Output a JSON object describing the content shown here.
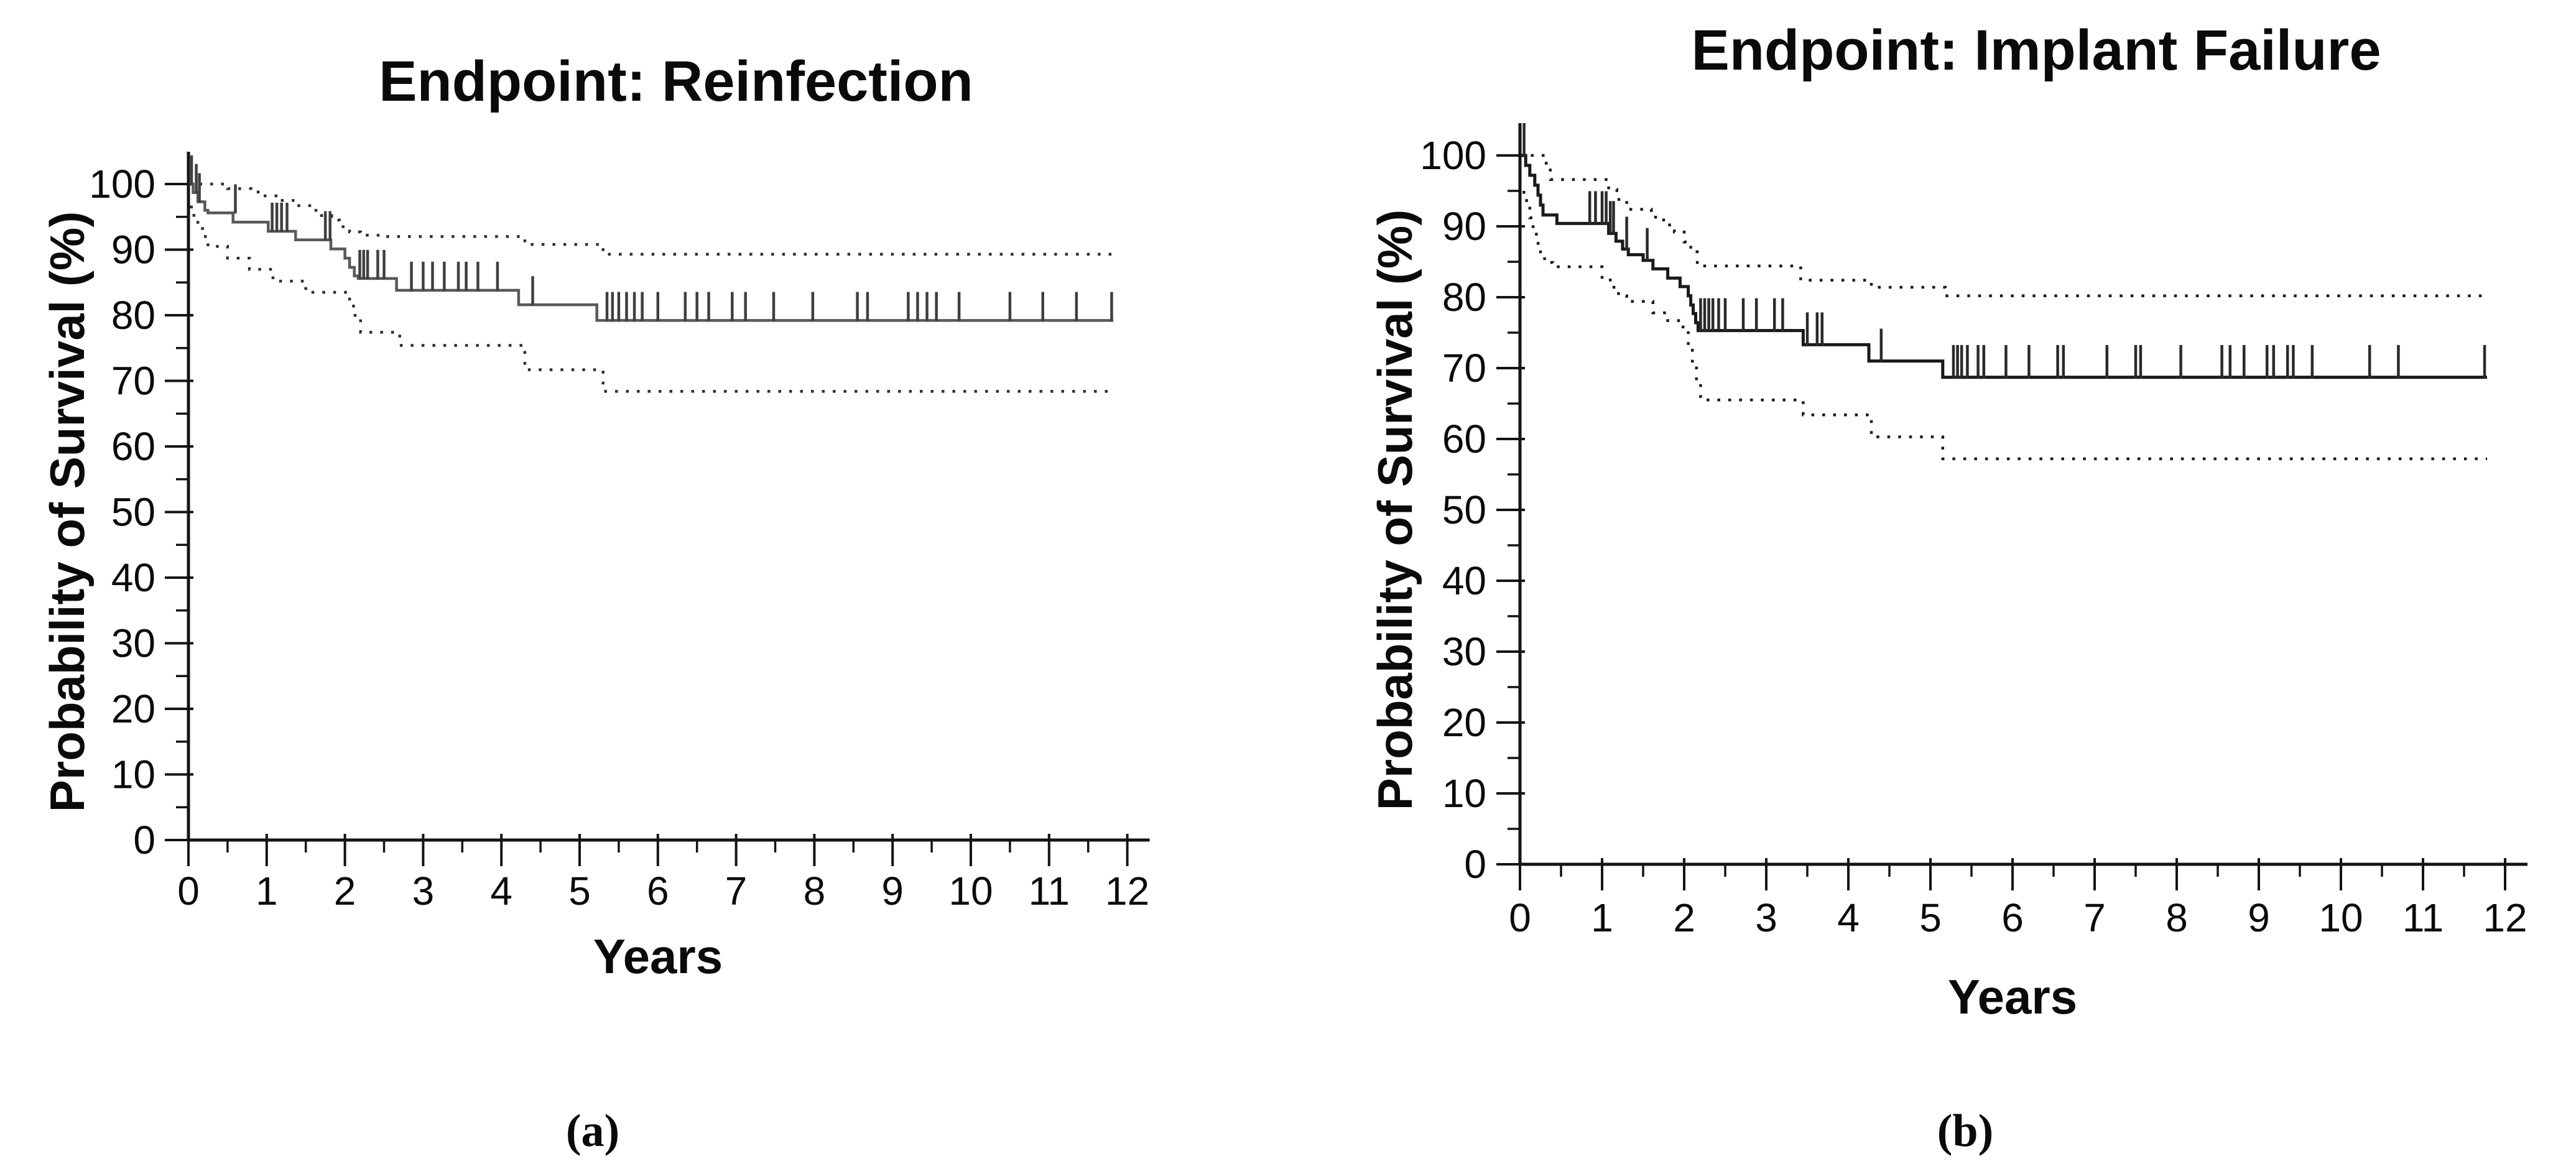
{
  "figure": {
    "background": "#ffffff",
    "text_color": "#0a0a0a",
    "caption_a": "(a)",
    "caption_b": "(b)"
  },
  "chart_data": [
    {
      "type": "line",
      "subtype": "kaplan-meier-survival",
      "title": "Endpoint: Reinfection",
      "xlabel": "Years",
      "ylabel": "Probability of Survival (%)",
      "caption": "(a)",
      "xlim": [
        0,
        12
      ],
      "ylim": [
        0,
        100
      ],
      "x_ticks": [
        0,
        1,
        2,
        3,
        4,
        5,
        6,
        7,
        8,
        9,
        10,
        11,
        12
      ],
      "y_ticks": [
        0,
        10,
        20,
        30,
        40,
        50,
        60,
        70,
        80,
        90,
        100
      ],
      "x_minor_step": 0.5,
      "y_minor_step": 5,
      "grid": false,
      "legend": false,
      "end_time": 11.82,
      "line_color": "#595959",
      "ci_color": "#2e2e2e",
      "censor_color": "#3f3f3f",
      "series": [
        {
          "id": "survival",
          "style": "solid",
          "points": [
            [
              0,
              100
            ],
            [
              0.06,
              98.7
            ],
            [
              0.12,
              97.3
            ],
            [
              0.21,
              96.0
            ],
            [
              0.25,
              95.6
            ],
            [
              0.57,
              94.2
            ],
            [
              1.02,
              92.8
            ],
            [
              1.37,
              91.5
            ],
            [
              1.82,
              90.1
            ],
            [
              2.0,
              88.7
            ],
            [
              2.06,
              87.3
            ],
            [
              2.12,
              86.0
            ],
            [
              2.17,
              85.6
            ],
            [
              2.66,
              83.8
            ],
            [
              4.22,
              81.6
            ],
            [
              5.22,
              79.2
            ],
            [
              11.82,
              79.2
            ]
          ]
        },
        {
          "id": "ci_upper",
          "style": "dotted",
          "points": [
            [
              0,
              100
            ],
            [
              0.5,
              99.3
            ],
            [
              0.8,
              98.8
            ],
            [
              0.95,
              98.2
            ],
            [
              1.16,
              97.5
            ],
            [
              1.37,
              96.7
            ],
            [
              1.55,
              96.0
            ],
            [
              1.7,
              95.2
            ],
            [
              1.83,
              94.5
            ],
            [
              1.93,
              93.5
            ],
            [
              2.06,
              92.7
            ],
            [
              2.2,
              92.2
            ],
            [
              2.5,
              92.0
            ],
            [
              4.3,
              90.8
            ],
            [
              5.3,
              89.3
            ],
            [
              11.82,
              89.3
            ]
          ]
        },
        {
          "id": "ci_lower",
          "style": "dotted",
          "points": [
            [
              0.02,
              96.5
            ],
            [
              0.07,
              95.0
            ],
            [
              0.12,
              93.5
            ],
            [
              0.18,
              92.0
            ],
            [
              0.25,
              90.5
            ],
            [
              0.5,
              88.7
            ],
            [
              0.78,
              87.0
            ],
            [
              1.08,
              85.2
            ],
            [
              1.5,
              83.5
            ],
            [
              2.06,
              81.4
            ],
            [
              2.13,
              79.5
            ],
            [
              2.2,
              77.4
            ],
            [
              2.7,
              75.4
            ],
            [
              4.3,
              71.7
            ],
            [
              5.3,
              68.4
            ],
            [
              11.82,
              68.4
            ]
          ]
        }
      ],
      "censor_marks": [
        [
          0.04,
          100
        ],
        [
          0.1,
          98.7
        ],
        [
          0.14,
          97.3
        ],
        [
          0.6,
          95.6
        ],
        [
          1.07,
          92.8
        ],
        [
          1.13,
          92.8
        ],
        [
          1.19,
          92.8
        ],
        [
          1.26,
          92.8
        ],
        [
          1.75,
          91.5
        ],
        [
          1.81,
          91.5
        ],
        [
          2.19,
          85.6
        ],
        [
          2.24,
          85.6
        ],
        [
          2.29,
          85.6
        ],
        [
          2.42,
          85.6
        ],
        [
          2.5,
          85.6
        ],
        [
          2.85,
          83.8
        ],
        [
          3.0,
          83.8
        ],
        [
          3.12,
          83.8
        ],
        [
          3.27,
          83.8
        ],
        [
          3.45,
          83.8
        ],
        [
          3.55,
          83.8
        ],
        [
          3.7,
          83.8
        ],
        [
          3.95,
          83.8
        ],
        [
          4.4,
          81.6
        ],
        [
          5.35,
          79.2
        ],
        [
          5.42,
          79.2
        ],
        [
          5.5,
          79.2
        ],
        [
          5.6,
          79.2
        ],
        [
          5.7,
          79.2
        ],
        [
          5.8,
          79.2
        ],
        [
          6.0,
          79.2
        ],
        [
          6.35,
          79.2
        ],
        [
          6.5,
          79.2
        ],
        [
          6.65,
          79.2
        ],
        [
          6.95,
          79.2
        ],
        [
          7.12,
          79.2
        ],
        [
          7.48,
          79.2
        ],
        [
          7.98,
          79.2
        ],
        [
          8.55,
          79.2
        ],
        [
          8.68,
          79.2
        ],
        [
          9.2,
          79.2
        ],
        [
          9.32,
          79.2
        ],
        [
          9.44,
          79.2
        ],
        [
          9.56,
          79.2
        ],
        [
          9.85,
          79.2
        ],
        [
          10.5,
          79.2
        ],
        [
          10.92,
          79.2
        ],
        [
          11.35,
          79.2
        ],
        [
          11.8,
          79.2
        ]
      ]
    },
    {
      "type": "line",
      "subtype": "kaplan-meier-survival",
      "title": "Endpoint: Implant Failure",
      "xlabel": "Years",
      "ylabel": "Probability of Survival (%)",
      "caption": "(b)",
      "xlim": [
        0,
        12
      ],
      "ylim": [
        0,
        100
      ],
      "x_ticks": [
        0,
        1,
        2,
        3,
        4,
        5,
        6,
        7,
        8,
        9,
        10,
        11,
        12
      ],
      "y_ticks": [
        0,
        10,
        20,
        30,
        40,
        50,
        60,
        70,
        80,
        90,
        100
      ],
      "x_minor_step": 0.5,
      "y_minor_step": 5,
      "grid": false,
      "legend": false,
      "end_time": 11.78,
      "line_color": "#1a1a1a",
      "ci_color": "#1a1a1a",
      "censor_color": "#2a2a2a",
      "series": [
        {
          "id": "survival",
          "style": "solid",
          "points": [
            [
              0,
              100
            ],
            [
              0.07,
              98.6
            ],
            [
              0.12,
              97.2
            ],
            [
              0.18,
              95.8
            ],
            [
              0.22,
              94.4
            ],
            [
              0.25,
              93.0
            ],
            [
              0.28,
              91.6
            ],
            [
              0.45,
              90.4
            ],
            [
              1.08,
              89.0
            ],
            [
              1.17,
              87.9
            ],
            [
              1.25,
              86.8
            ],
            [
              1.32,
              86.0
            ],
            [
              1.5,
              85.2
            ],
            [
              1.62,
              84.0
            ],
            [
              1.8,
              82.7
            ],
            [
              1.95,
              81.5
            ],
            [
              2.05,
              80.2
            ],
            [
              2.08,
              78.9
            ],
            [
              2.11,
              77.7
            ],
            [
              2.14,
              76.4
            ],
            [
              2.17,
              75.3
            ],
            [
              3.45,
              73.3
            ],
            [
              4.25,
              71.0
            ],
            [
              5.15,
              68.7
            ],
            [
              11.78,
              68.7
            ]
          ]
        },
        {
          "id": "ci_upper",
          "style": "dotted",
          "points": [
            [
              0,
              100
            ],
            [
              0.32,
              98.4
            ],
            [
              0.37,
              96.6
            ],
            [
              1.08,
              95.2
            ],
            [
              1.18,
              93.8
            ],
            [
              1.3,
              92.4
            ],
            [
              1.6,
              91.3
            ],
            [
              1.75,
              90.2
            ],
            [
              1.88,
              89.2
            ],
            [
              2.0,
              87.8
            ],
            [
              2.08,
              86.4
            ],
            [
              2.16,
              84.9
            ],
            [
              2.25,
              84.4
            ],
            [
              3.42,
              82.4
            ],
            [
              4.28,
              81.4
            ],
            [
              5.18,
              80.2
            ],
            [
              11.78,
              80.2
            ]
          ]
        },
        {
          "id": "ci_lower",
          "style": "dotted",
          "points": [
            [
              0.03,
              94.8
            ],
            [
              0.08,
              93.0
            ],
            [
              0.12,
              91.2
            ],
            [
              0.16,
              89.4
            ],
            [
              0.2,
              87.6
            ],
            [
              0.25,
              86.0
            ],
            [
              0.3,
              84.9
            ],
            [
              0.4,
              84.3
            ],
            [
              1.0,
              82.8
            ],
            [
              1.1,
              81.4
            ],
            [
              1.2,
              80.2
            ],
            [
              1.3,
              79.4
            ],
            [
              1.62,
              77.8
            ],
            [
              1.8,
              76.7
            ],
            [
              1.95,
              75.8
            ],
            [
              2.05,
              73.0
            ],
            [
              2.1,
              70.5
            ],
            [
              2.15,
              68.0
            ],
            [
              2.2,
              65.5
            ],
            [
              3.45,
              63.4
            ],
            [
              4.28,
              60.3
            ],
            [
              5.15,
              57.2
            ],
            [
              11.78,
              57.2
            ]
          ]
        }
      ],
      "censor_marks": [
        [
          0.05,
          100
        ],
        [
          0.85,
          90.4
        ],
        [
          0.92,
          90.4
        ],
        [
          1.0,
          90.4
        ],
        [
          1.05,
          90.4
        ],
        [
          1.1,
          89.0
        ],
        [
          1.14,
          89.0
        ],
        [
          1.3,
          86.8
        ],
        [
          1.55,
          85.2
        ],
        [
          2.2,
          75.3
        ],
        [
          2.25,
          75.3
        ],
        [
          2.3,
          75.3
        ],
        [
          2.35,
          75.3
        ],
        [
          2.42,
          75.3
        ],
        [
          2.5,
          75.3
        ],
        [
          2.72,
          75.3
        ],
        [
          2.88,
          75.3
        ],
        [
          3.1,
          75.3
        ],
        [
          3.2,
          75.3
        ],
        [
          3.5,
          73.3
        ],
        [
          3.62,
          73.3
        ],
        [
          3.68,
          73.3
        ],
        [
          4.4,
          71.0
        ],
        [
          5.28,
          68.7
        ],
        [
          5.33,
          68.7
        ],
        [
          5.38,
          68.7
        ],
        [
          5.45,
          68.7
        ],
        [
          5.58,
          68.7
        ],
        [
          5.65,
          68.7
        ],
        [
          5.92,
          68.7
        ],
        [
          6.2,
          68.7
        ],
        [
          6.55,
          68.7
        ],
        [
          6.62,
          68.7
        ],
        [
          7.15,
          68.7
        ],
        [
          7.5,
          68.7
        ],
        [
          7.56,
          68.7
        ],
        [
          8.05,
          68.7
        ],
        [
          8.55,
          68.7
        ],
        [
          8.65,
          68.7
        ],
        [
          8.82,
          68.7
        ],
        [
          9.1,
          68.7
        ],
        [
          9.18,
          68.7
        ],
        [
          9.35,
          68.7
        ],
        [
          9.42,
          68.7
        ],
        [
          9.65,
          68.7
        ],
        [
          10.35,
          68.7
        ],
        [
          10.7,
          68.7
        ],
        [
          11.75,
          68.7
        ]
      ]
    }
  ]
}
